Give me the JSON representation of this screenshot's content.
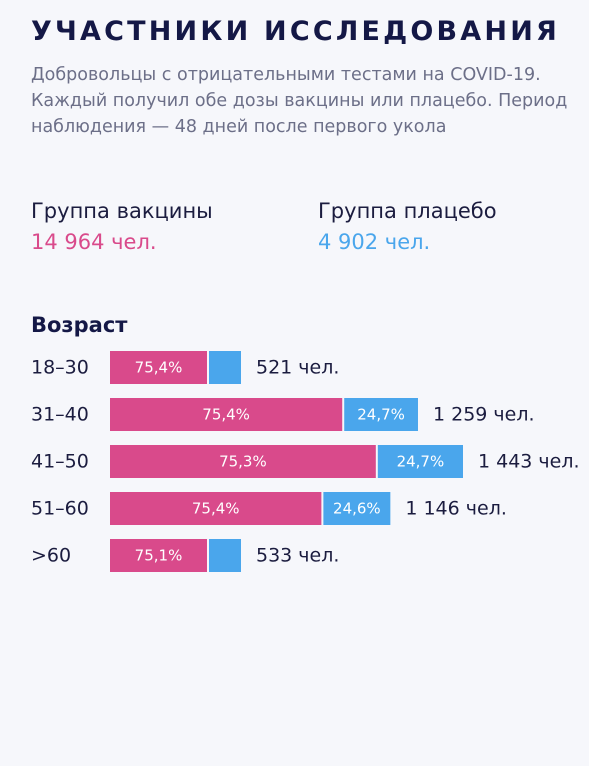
{
  "header": {
    "title": "УЧАСТНИКИ ИССЛЕДОВАНИЯ",
    "subtitle": "Добровольцы с отрицательными тестами на COVID-19. Каждый получил обе дозы вакцины или плацебо. Период наблюдения — 48 дней после первого укола"
  },
  "groups": {
    "vaccine": {
      "label": "Группа вакцины",
      "value": "14 964 чел."
    },
    "placebo": {
      "label": "Группа плацебо",
      "value": "4 902 чел."
    }
  },
  "section": {
    "title": "Возраст"
  },
  "colors": {
    "vaccine": "#d94a8b",
    "placebo": "#4aa6ec",
    "text": "#1b1c3f"
  },
  "chart_data": {
    "type": "bar",
    "orientation": "horizontal",
    "stacked": true,
    "categories": [
      "18–30",
      "31–40",
      "41–50",
      "51–60",
      ">60"
    ],
    "series": [
      {
        "key": "vaccine",
        "share_labels": [
          "75,4%",
          "75,4%",
          "75,3%",
          "75,4%",
          "75,1%"
        ],
        "share_values": [
          75.4,
          75.4,
          75.3,
          75.4,
          75.1
        ]
      },
      {
        "key": "placebo",
        "share_labels": [
          "",
          "24,7%",
          "24,7%",
          "24,6%",
          ""
        ],
        "share_values": [
          24.6,
          24.7,
          24.7,
          24.6,
          24.9
        ]
      }
    ],
    "totals": [
      521,
      1259,
      1443,
      1146,
      533
    ],
    "total_labels": [
      "521 чел.",
      "1 259 чел.",
      "1 443 чел.",
      "1 146 чел.",
      "533 чел."
    ]
  }
}
